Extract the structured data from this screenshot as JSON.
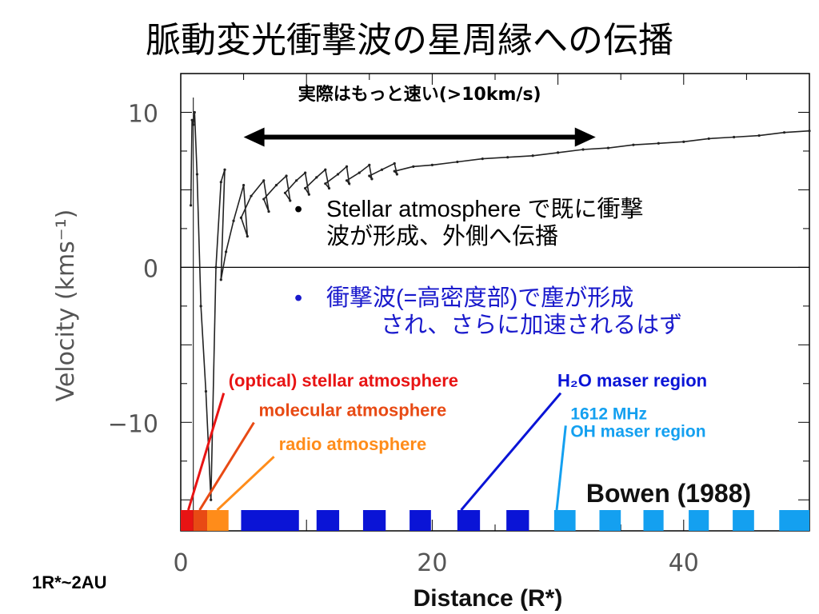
{
  "slide": {
    "title": "脈動変光衝撃波の星周縁への伝播",
    "unit_note": "1R*~2AU",
    "bullets": [
      {
        "marker": "•",
        "lines": [
          "Stellar atmosphere で既に衝撃",
          "波が形成、外側へ伝播"
        ],
        "color": "#000000"
      },
      {
        "marker": "•",
        "lines": [
          "衝撃波(=高密度部)で塵が形成",
          "され、さらに加速されるはず"
        ],
        "color": "#1a1acc"
      }
    ]
  },
  "chart_data": {
    "type": "line",
    "xlabel": "Distance (R*)",
    "ylabel": "Velocity (kms⁻¹)",
    "xlim": [
      0,
      50
    ],
    "ylim": [
      -17,
      12.5
    ],
    "x_ticks": [
      0,
      20,
      40
    ],
    "x_tick_labels": [
      "0",
      "20",
      "40"
    ],
    "y_ticks": [
      10,
      0,
      -10
    ],
    "y_tick_labels": [
      "10",
      "0",
      "−10"
    ],
    "zero_line": true,
    "credit": "Bowen (1988)",
    "series": [
      {
        "x": [
          0.8,
          0.9,
          1.0,
          1.1,
          1.3,
          1.6,
          2.0,
          2.4,
          2.8,
          3.2,
          3.5,
          3.2,
          3.6,
          4.2,
          5.0,
          5.3,
          4.8,
          5.6,
          6.6,
          7.0,
          6.6,
          7.6,
          8.4,
          8.7,
          8.3,
          9.2,
          9.9,
          10.2,
          9.9,
          10.8,
          11.5,
          11.8,
          11.5,
          12.5,
          13.2,
          13.4,
          13.2,
          14.2,
          15.0,
          15.2,
          15.0,
          16.0,
          17.0,
          17.2,
          17.0,
          18.5,
          20.0,
          22.0,
          24.0,
          26.0,
          28.0,
          30.0,
          32.0,
          34.0,
          36.0,
          38.0,
          40.0,
          42.0,
          44.0,
          46.0,
          48.0,
          50.0
        ],
        "y": [
          4.0,
          9.5,
          9.2,
          10.0,
          6.0,
          -2.5,
          -8.0,
          -15.0,
          0.0,
          5.5,
          6.3,
          -0.8,
          1.0,
          3.0,
          5.3,
          2.0,
          3.2,
          4.6,
          5.6,
          3.6,
          4.4,
          5.3,
          5.9,
          4.3,
          4.8,
          5.6,
          6.1,
          4.7,
          5.1,
          5.8,
          6.3,
          5.1,
          5.4,
          6.0,
          6.5,
          5.4,
          5.6,
          6.1,
          6.6,
          5.7,
          5.9,
          6.3,
          6.7,
          6.0,
          6.2,
          6.5,
          6.6,
          6.8,
          7.0,
          7.1,
          7.2,
          7.4,
          7.6,
          7.7,
          7.9,
          8.0,
          8.1,
          8.3,
          8.4,
          8.5,
          8.7,
          8.8
        ]
      }
    ],
    "speed_annotation": {
      "text": "実際はもっと速い(>10km/s)",
      "x_from": 5.0,
      "x_to": 33.0,
      "y": 8.4,
      "label_y": 11.2
    },
    "regions": [
      {
        "label": "(optical) stellar atmosphere",
        "color": "#e81414",
        "x_start": 0.0,
        "x_end": 1.0,
        "label_x": 3.8,
        "label_y": -7.7,
        "connector_x": 0.6
      },
      {
        "label": "molecular atmosphere",
        "color": "#e84a14",
        "x_start": 1.0,
        "x_end": 2.1,
        "label_x": 6.2,
        "label_y": -9.6,
        "connector_x": 1.5
      },
      {
        "label": "radio atmosphere",
        "color": "#ff8c1a",
        "x_start": 2.1,
        "x_end": 3.8,
        "label_x": 7.8,
        "label_y": -11.8,
        "connector_x": 2.9
      },
      {
        "label": "H₂O maser region",
        "color": "#0a14d6",
        "x_start": 4.8,
        "x_end": 27.7,
        "label_x": 30.6,
        "label_y": -7.7,
        "connector_x": 22.3
      },
      {
        "label_lines": [
          "1612 MHz",
          "OH maser region"
        ],
        "color": "#14a0f0",
        "x_start": 29.7,
        "x_end": 50.0,
        "label_x": 31.0,
        "label_y": -9.8,
        "connector_x": 29.9
      }
    ],
    "h2o_blocks": [
      [
        4.8,
        9.4
      ],
      [
        10.8,
        12.6
      ],
      [
        14.5,
        16.3
      ],
      [
        18.2,
        19.9
      ],
      [
        22.0,
        23.8
      ],
      [
        25.9,
        27.7
      ]
    ],
    "oh_blocks": [
      [
        29.7,
        31.4
      ],
      [
        33.3,
        35.0
      ],
      [
        36.8,
        38.4
      ],
      [
        40.4,
        42.0
      ],
      [
        43.9,
        45.6
      ],
      [
        47.6,
        50.0
      ]
    ]
  }
}
